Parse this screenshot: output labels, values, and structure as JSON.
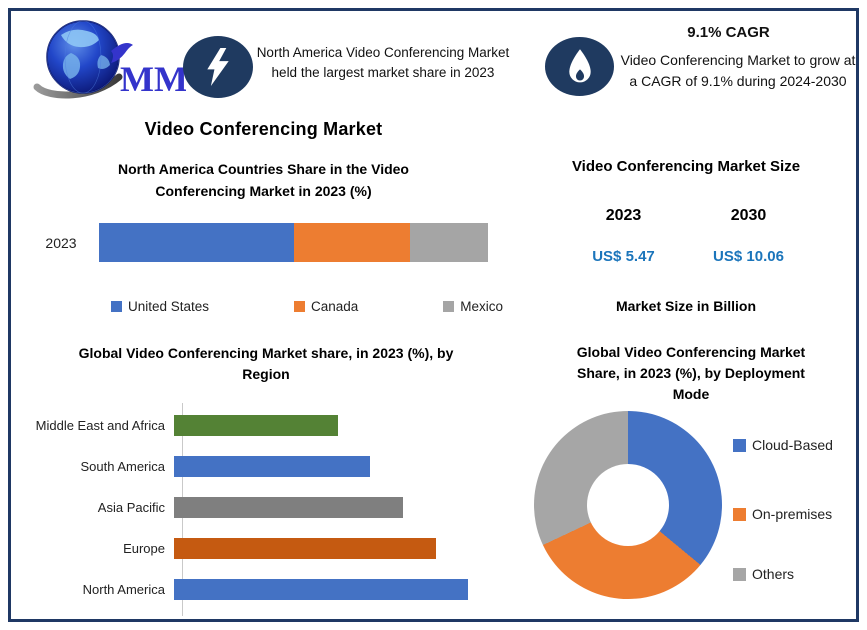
{
  "meta": {
    "background_color": "#FFFFFF",
    "border_color": "#1F3864",
    "badge_color": "#1F3A60"
  },
  "header": {
    "logo_text": "MMR",
    "highlight": {
      "icon": "lightning-bolt",
      "text": "North America Video Conferencing Market held the largest market share in 2023"
    },
    "cagr": {
      "icon": "flame",
      "title": "9.1% CAGR",
      "text": "Video Conferencing Market to grow at a CAGR of 9.1% during 2024-2030"
    }
  },
  "left_panel": {
    "main_title": "Video Conferencing Market"
  },
  "market_size": {
    "title": "Video Conferencing Market Size",
    "columns": [
      {
        "year": "2023",
        "value": "US$ 5.47"
      },
      {
        "year": "2030",
        "value": "US$ 10.06"
      }
    ],
    "unit_label": "Market Size in Billion",
    "value_color": "#1B75BB"
  },
  "chart_data": [
    {
      "type": "bar",
      "orientation": "horizontal-stacked",
      "title": "North America Countries Share in the Video Conferencing Market in 2023 (%)",
      "categories": [
        "2023"
      ],
      "series": [
        {
          "name": "United States",
          "values": [
            50
          ],
          "color": "#4472C4"
        },
        {
          "name": "Canada",
          "values": [
            30
          ],
          "color": "#ED7D31"
        },
        {
          "name": "Mexico",
          "values": [
            20
          ],
          "color": "#A5A5A5"
        }
      ],
      "xlim": [
        0,
        100
      ],
      "legend_position": "bottom",
      "grid": false
    },
    {
      "type": "bar",
      "orientation": "horizontal",
      "title": "Global Video Conferencing Market share, in 2023 (%), by Region",
      "categories": [
        "Middle East and Africa",
        "South America",
        "Asia Pacific",
        "Europe",
        "North America"
      ],
      "values": [
        20,
        24,
        28,
        32,
        36
      ],
      "colors": [
        "#548235",
        "#4472C4",
        "#7F7F7F",
        "#C55A11",
        "#4472C4"
      ],
      "xlim": [
        0,
        40
      ],
      "grid": false,
      "legend_position": "none"
    },
    {
      "type": "pie",
      "subtype": "donut",
      "title": "Global Video Conferencing Market Share, in 2023 (%), by Deployment Mode",
      "segments": [
        {
          "label": "Cloud-Based",
          "value": 36,
          "color": "#4472C4"
        },
        {
          "label": "On-premises",
          "value": 32,
          "color": "#ED7D31"
        },
        {
          "label": "Others",
          "value": 32,
          "color": "#A6A6A6"
        }
      ],
      "start_angle_deg": 0,
      "legend_position": "right"
    }
  ]
}
